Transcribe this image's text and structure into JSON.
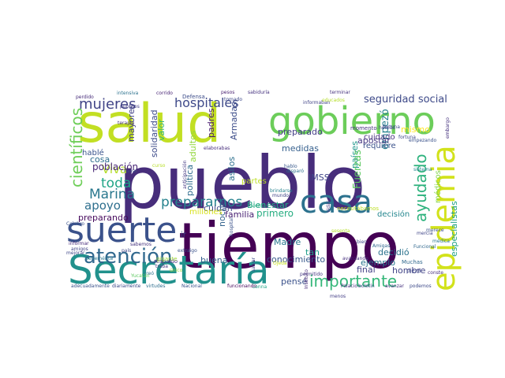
{
  "wordcloud": {
    "words": [
      {
        "text": "pueblo",
        "color": "#472d7b"
      },
      {
        "text": "tiempo",
        "color": "#440154"
      },
      {
        "text": "salud",
        "color": "#c2df23"
      },
      {
        "text": "gobierno",
        "color": "#6ccd5a"
      },
      {
        "text": "Secretaría",
        "color": "#21918c"
      },
      {
        "text": "suerte",
        "color": "#3b528b"
      },
      {
        "text": "epidemia",
        "color": "#d2e21b"
      },
      {
        "text": "casa",
        "color": "#2c728e"
      },
      {
        "text": "atención",
        "color": "#31688e"
      },
      {
        "text": "importante",
        "color": "#35b779"
      },
      {
        "text": "ayudado",
        "color": "#2db27d"
      },
      {
        "text": "hospitales",
        "color": "#3e4989"
      },
      {
        "text": "científicos",
        "color": "#6ece58"
      },
      {
        "text": "mujeres",
        "color": "#414487"
      },
      {
        "text": "prepararnos",
        "color": "#26828e"
      },
      {
        "text": "seguridad social",
        "color": "#3e4a89"
      },
      {
        "text": "toda",
        "color": "#20a486"
      },
      {
        "text": "Marina",
        "color": "#2a788e"
      },
      {
        "text": "apoyo",
        "color": "#2e6f8e"
      },
      {
        "text": "Viva",
        "color": "#b5de2b"
      },
      {
        "text": "especialistas",
        "color": "#20a386"
      },
      {
        "text": "empezó",
        "color": "#26818e"
      },
      {
        "text": "preparado",
        "color": "#433e85"
      },
      {
        "text": "apostar",
        "color": "#453882"
      },
      {
        "text": "cuidado",
        "color": "#46317e"
      },
      {
        "text": "requiere",
        "color": "#3b528b"
      },
      {
        "text": "medidas",
        "color": "#355f8d"
      },
      {
        "text": "países",
        "color": "#1f968b"
      },
      {
        "text": "IMSS",
        "color": "#404688"
      },
      {
        "text": "Fuerzas",
        "color": "#5ec962"
      },
      {
        "text": "mismo",
        "color": "#fde725"
      },
      {
        "text": "médicos",
        "color": "#84d44b"
      },
      {
        "text": "población",
        "color": "#482576"
      },
      {
        "text": "cosa",
        "color": "#2e6e8e"
      },
      {
        "text": "hablé",
        "color": "#3a548c"
      },
      {
        "text": "preparando",
        "color": "#460a5d"
      },
      {
        "text": "Bienestar",
        "color": "#22a884"
      },
      {
        "text": "primero",
        "color": "#27ad81"
      },
      {
        "text": "decisión",
        "color": "#24868e"
      },
      {
        "text": "decidió",
        "color": "#2c738e"
      },
      {
        "text": "hombre",
        "color": "#414487"
      },
      {
        "text": "ejemplo",
        "color": "#2a768e"
      },
      {
        "text": "conocimiento",
        "color": "#38598c"
      },
      {
        "text": "final",
        "color": "#424186"
      },
      {
        "text": "tan",
        "color": "#1f9e89"
      },
      {
        "text": "pensé",
        "color": "#3b528b"
      },
      {
        "text": "Madre",
        "color": "#2a788e"
      },
      {
        "text": "buena",
        "color": "#355f8d"
      },
      {
        "text": "cuidan",
        "color": "#3f4788"
      },
      {
        "text": "familia",
        "color": "#482173"
      },
      {
        "text": "noche",
        "color": "#33638d"
      },
      {
        "text": "asilos",
        "color": "#2d708e"
      },
      {
        "text": "partes",
        "color": "#bddf26"
      },
      {
        "text": "millones",
        "color": "#d8e219"
      },
      {
        "text": "padres",
        "color": "#481a6c"
      },
      {
        "text": "Armadas",
        "color": "#3d4d8a"
      },
      {
        "text": "adultos",
        "color": "#95d840"
      },
      {
        "text": "política",
        "color": "#2f6c8e"
      },
      {
        "text": "valor",
        "color": "#35b779"
      },
      {
        "text": "solidaridad",
        "color": "#3e4c8a"
      },
      {
        "text": "mayores",
        "color": "#424086"
      },
      {
        "text": "momento",
        "color": "#46337f"
      },
      {
        "text": "Muchas",
        "color": "#31688e"
      },
      {
        "text": "pieza",
        "color": "#3f4788"
      },
      {
        "text": "necesitábamos",
        "color": "#bddf26"
      },
      {
        "text": "ir",
        "color": "#3e4989"
      },
      {
        "text": "respaldo",
        "color": "#472f7d"
      },
      {
        "text": "gigante",
        "color": "#9fda3a"
      },
      {
        "text": "Lenna",
        "color": "#20a486"
      },
      {
        "text": "Celebro",
        "color": "#3b528b"
      },
      {
        "text": "mercia",
        "color": "#404688"
      },
      {
        "text": "Funcional",
        "color": "#31688e"
      },
      {
        "text": "Palacio",
        "color": "#472f7d"
      },
      {
        "text": "boletín",
        "color": "#3f4889"
      },
      {
        "text": "avanzar",
        "color": "#46337f"
      },
      {
        "text": "podemos",
        "color": "#3e4a89"
      },
      {
        "text": "sistema",
        "color": "#24868e"
      },
      {
        "text": "Nacional",
        "color": "#3b528b"
      },
      {
        "text": "funcionando",
        "color": "#46085c"
      },
      {
        "text": "Benemérita",
        "color": "#2a788e"
      },
      {
        "text": "diariamente",
        "color": "#3e4989"
      },
      {
        "text": "virtudes",
        "color": "#2e6e8e"
      },
      {
        "text": "adecuadamente",
        "color": "#3b528b"
      },
      {
        "text": "informar",
        "color": "#472a7a"
      },
      {
        "text": "amigos",
        "color": "#414487"
      },
      {
        "text": "mejorar",
        "color": "#3f4788"
      },
      {
        "text": "sabemos",
        "color": "#46327e"
      },
      {
        "text": "creó",
        "color": "#2c728e"
      },
      {
        "text": "Ojeda",
        "color": "#c8e020"
      },
      {
        "text": "brindarse",
        "color": "#26828e"
      },
      {
        "text": "avanzando",
        "color": "#46307e"
      },
      {
        "text": "hospital",
        "color": "#3b528b"
      },
      {
        "text": "Instituto",
        "color": "#482878"
      },
      {
        "text": "vidas",
        "color": "#46337f"
      },
      {
        "text": "permitido",
        "color": "#453781"
      },
      {
        "text": "heredó",
        "color": "#3f4889"
      },
      {
        "text": "menos",
        "color": "#433e85"
      },
      {
        "text": "cuenta",
        "color": "#27ad81"
      },
      {
        "text": "mundo",
        "color": "#414487"
      },
      {
        "text": "hablo",
        "color": "#38598c"
      },
      {
        "text": "disparó",
        "color": "#2d708e"
      },
      {
        "text": "elaborabas",
        "color": "#472d7b"
      },
      {
        "text": "anticipación",
        "color": "#443983"
      },
      {
        "text": "Defensa",
        "color": "#3d4d8a"
      },
      {
        "text": "pesos",
        "color": "#481f70"
      },
      {
        "text": "sabiduría",
        "color": "#46337f"
      },
      {
        "text": "tomado",
        "color": "#3e4989"
      },
      {
        "text": "corrido",
        "color": "#482475"
      },
      {
        "text": "intensiva",
        "color": "#2c728e"
      },
      {
        "text": "terapia",
        "color": "#46317e"
      },
      {
        "text": "perdido",
        "color": "#472c7a"
      },
      {
        "text": "públicos",
        "color": "#433d84"
      },
      {
        "text": "informaban",
        "color": "#414487"
      },
      {
        "text": "terminar",
        "color": "#46327e"
      },
      {
        "text": "fortuna",
        "color": "#3e4989"
      },
      {
        "text": "educados",
        "color": "#b5de2b"
      },
      {
        "text": "empezando",
        "color": "#3b528b"
      },
      {
        "text": "embargo",
        "color": "#46337f"
      },
      {
        "text": "médica",
        "color": "#2a788e"
      },
      {
        "text": "conste",
        "color": "#46307e"
      },
      {
        "text": "Amigas",
        "color": "#31688e"
      },
      {
        "text": "naval",
        "color": "#3e4989"
      },
      {
        "text": "país",
        "color": "#3f4788"
      },
      {
        "text": "curso",
        "color": "#b8de29"
      },
      {
        "text": "extraigo",
        "color": "#3b528b"
      },
      {
        "text": "fortuna",
        "color": "#3e4989"
      },
      {
        "text": "único",
        "color": "#98d83e"
      },
      {
        "text": "Yucatán",
        "color": "#5ec962"
      },
      {
        "text": "traba",
        "color": "#46337f"
      },
      {
        "text": "salvar",
        "color": "#3e4989"
      },
      {
        "text": "bien",
        "color": "#3f4788"
      },
      {
        "text": "merece",
        "color": "#3b528b"
      },
      {
        "text": "sesenta",
        "color": "#b5de2b"
      }
    ]
  }
}
